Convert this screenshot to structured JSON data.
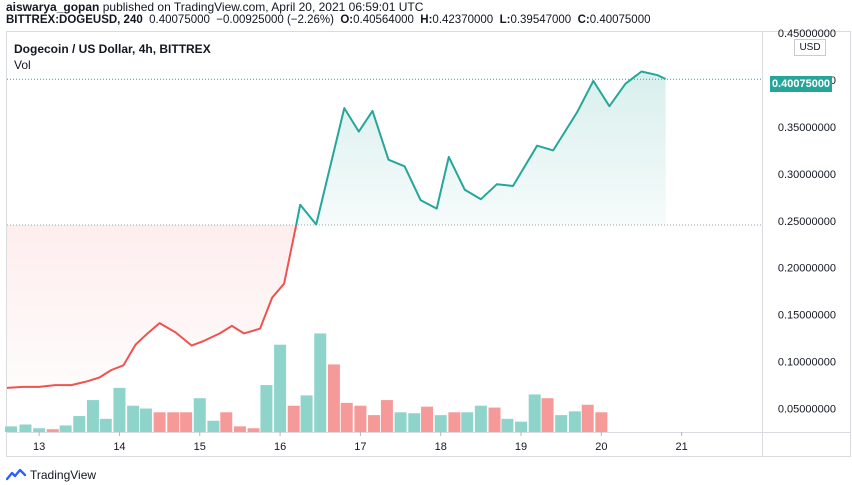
{
  "header": {
    "publisher": "aiswarya_gopan",
    "published_text": "published on TradingView.com, April 20, 2021 06:59:01 UTC",
    "symbol": "BITTREX:DOGEUSD, 240",
    "last": "0.40075000",
    "change": "−0.00925000 (−2.26%)",
    "o_label": "O:",
    "o_value": "0.40564000",
    "h_label": "H:",
    "h_value": "0.42370000",
    "l_label": "L:",
    "l_value": "0.39547000",
    "c_label": "C:",
    "c_value": "0.40075000"
  },
  "legend": {
    "title": "Dogecoin / US Dollar, 4h, BITTREX",
    "vol": "Vol"
  },
  "axis": {
    "currency": "USD",
    "last_price_tag": "0.40075000"
  },
  "footer": {
    "brand": "TradingView"
  },
  "colors": {
    "up": "#26a69a",
    "down": "#ef5350",
    "vol_up": "#8fd4cb",
    "vol_down": "#f59a98"
  },
  "chart_data": {
    "type": "area",
    "y_ticks": [
      "0.45000000",
      "0.40000000",
      "0.35000000",
      "0.30000000",
      "0.25000000",
      "0.20000000",
      "0.15000000",
      "0.10000000",
      "0.05000000"
    ],
    "y_tick_values": [
      0.45,
      0.4,
      0.35,
      0.3,
      0.25,
      0.2,
      0.15,
      0.1,
      0.05
    ],
    "x_ticks": [
      "13",
      "14",
      "15",
      "16",
      "17",
      "18",
      "19",
      "20",
      "21"
    ],
    "x_tick_values": [
      13,
      14,
      15,
      16,
      17,
      18,
      19,
      20,
      21
    ],
    "ylim": [
      0.025,
      0.45
    ],
    "xlim": [
      12.6,
      22.0
    ],
    "baseline": 0.2455,
    "last_price": 0.40075,
    "price": [
      [
        12.6,
        0.072
      ],
      [
        12.8,
        0.073
      ],
      [
        13.0,
        0.073
      ],
      [
        13.2,
        0.075
      ],
      [
        13.4,
        0.075
      ],
      [
        13.6,
        0.079
      ],
      [
        13.75,
        0.083
      ],
      [
        13.9,
        0.091
      ],
      [
        14.05,
        0.096
      ],
      [
        14.2,
        0.118
      ],
      [
        14.35,
        0.13
      ],
      [
        14.5,
        0.141
      ],
      [
        14.7,
        0.131
      ],
      [
        14.9,
        0.117
      ],
      [
        15.05,
        0.122
      ],
      [
        15.25,
        0.13
      ],
      [
        15.4,
        0.138
      ],
      [
        15.55,
        0.13
      ],
      [
        15.75,
        0.135
      ],
      [
        15.9,
        0.168
      ],
      [
        16.05,
        0.183
      ],
      [
        16.2,
        0.245
      ],
      [
        16.25,
        0.267
      ],
      [
        16.45,
        0.246
      ],
      [
        16.8,
        0.37
      ],
      [
        16.98,
        0.345
      ],
      [
        17.15,
        0.367
      ],
      [
        17.35,
        0.315
      ],
      [
        17.55,
        0.308
      ],
      [
        17.75,
        0.272
      ],
      [
        17.95,
        0.263
      ],
      [
        18.1,
        0.318
      ],
      [
        18.3,
        0.283
      ],
      [
        18.5,
        0.273
      ],
      [
        18.7,
        0.289
      ],
      [
        18.9,
        0.287
      ],
      [
        19.2,
        0.33
      ],
      [
        19.4,
        0.325
      ],
      [
        19.7,
        0.366
      ],
      [
        19.9,
        0.399
      ],
      [
        20.1,
        0.372
      ],
      [
        20.3,
        0.396
      ],
      [
        20.5,
        0.409
      ],
      [
        20.7,
        0.405
      ],
      [
        20.8,
        0.401
      ]
    ],
    "volume": [
      {
        "x": 12.65,
        "v": 0.006,
        "up": true
      },
      {
        "x": 12.83,
        "v": 0.008,
        "up": true
      },
      {
        "x": 13.0,
        "v": 0.004,
        "up": true
      },
      {
        "x": 13.17,
        "v": 0.003,
        "up": false
      },
      {
        "x": 13.33,
        "v": 0.007,
        "up": true
      },
      {
        "x": 13.5,
        "v": 0.017,
        "up": true
      },
      {
        "x": 13.67,
        "v": 0.034,
        "up": true
      },
      {
        "x": 13.83,
        "v": 0.014,
        "up": true
      },
      {
        "x": 14.0,
        "v": 0.047,
        "up": true
      },
      {
        "x": 14.17,
        "v": 0.028,
        "up": true
      },
      {
        "x": 14.33,
        "v": 0.025,
        "up": true
      },
      {
        "x": 14.5,
        "v": 0.021,
        "up": false
      },
      {
        "x": 14.67,
        "v": 0.021,
        "up": false
      },
      {
        "x": 14.83,
        "v": 0.021,
        "up": false
      },
      {
        "x": 15.0,
        "v": 0.036,
        "up": true
      },
      {
        "x": 15.17,
        "v": 0.012,
        "up": true
      },
      {
        "x": 15.33,
        "v": 0.021,
        "up": false
      },
      {
        "x": 15.5,
        "v": 0.006,
        "up": false
      },
      {
        "x": 15.67,
        "v": 0.004,
        "up": false
      },
      {
        "x": 15.83,
        "v": 0.05,
        "up": true
      },
      {
        "x": 16.0,
        "v": 0.093,
        "up": true
      },
      {
        "x": 16.17,
        "v": 0.028,
        "up": false
      },
      {
        "x": 16.33,
        "v": 0.039,
        "up": true
      },
      {
        "x": 16.5,
        "v": 0.105,
        "up": true
      },
      {
        "x": 16.67,
        "v": 0.072,
        "up": false
      },
      {
        "x": 16.83,
        "v": 0.031,
        "up": false
      },
      {
        "x": 17.0,
        "v": 0.028,
        "up": false
      },
      {
        "x": 17.17,
        "v": 0.018,
        "up": false
      },
      {
        "x": 17.33,
        "v": 0.034,
        "up": false
      },
      {
        "x": 17.5,
        "v": 0.021,
        "up": true
      },
      {
        "x": 17.67,
        "v": 0.02,
        "up": true
      },
      {
        "x": 17.83,
        "v": 0.027,
        "up": false
      },
      {
        "x": 18.0,
        "v": 0.018,
        "up": true
      },
      {
        "x": 18.17,
        "v": 0.021,
        "up": false
      },
      {
        "x": 18.33,
        "v": 0.021,
        "up": true
      },
      {
        "x": 18.5,
        "v": 0.028,
        "up": true
      },
      {
        "x": 18.67,
        "v": 0.026,
        "up": false
      },
      {
        "x": 18.83,
        "v": 0.014,
        "up": true
      },
      {
        "x": 19.0,
        "v": 0.011,
        "up": true
      },
      {
        "x": 19.17,
        "v": 0.04,
        "up": true
      },
      {
        "x": 19.33,
        "v": 0.036,
        "up": false
      },
      {
        "x": 19.5,
        "v": 0.018,
        "up": true
      },
      {
        "x": 19.67,
        "v": 0.022,
        "up": true
      },
      {
        "x": 19.83,
        "v": 0.029,
        "up": false
      },
      {
        "x": 20.0,
        "v": 0.021,
        "up": false
      }
    ]
  }
}
